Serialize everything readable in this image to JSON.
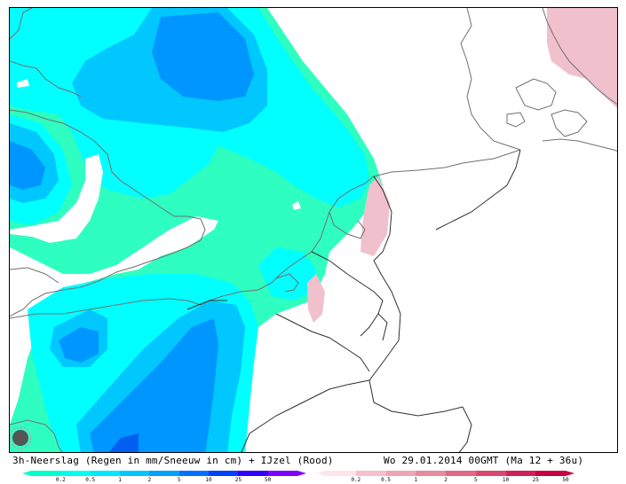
{
  "caption": {
    "left": "3h-Neerslag (Regen in mm/Sneeuw in cm) + IJzel (Rood)",
    "right": "Wo 29.01.2014 00GMT (Ma 12 + 36u)"
  },
  "legend_rain": {
    "colors": [
      "#00ffcc",
      "#00ffee",
      "#00e8ff",
      "#00c8ff",
      "#00a0ff",
      "#0070ff",
      "#0040ff",
      "#3000ff",
      "#8000ff"
    ],
    "ticks": [
      "0.2",
      "0.5",
      "1",
      "2",
      "5",
      "10",
      "25",
      "50"
    ]
  },
  "legend_ice": {
    "colors": [
      "#ffe4ea",
      "#f6c0cc",
      "#efa5b5",
      "#e88aa0",
      "#e06a87",
      "#d84870",
      "#d02058",
      "#c80040"
    ],
    "ticks": [
      "0.2",
      "0.5",
      "1",
      "2",
      "5",
      "10",
      "25",
      "50"
    ]
  },
  "map_colors": {
    "rain_light": "#2effc0",
    "rain_1": "#00ffff",
    "rain_2": "#00c8ff",
    "rain_5": "#0096ff",
    "rain_10": "#005ff0",
    "ice": "#f0c0cc",
    "coast": "#707070",
    "border": "#303030"
  },
  "logo_icon": "spinner-logo-icon"
}
